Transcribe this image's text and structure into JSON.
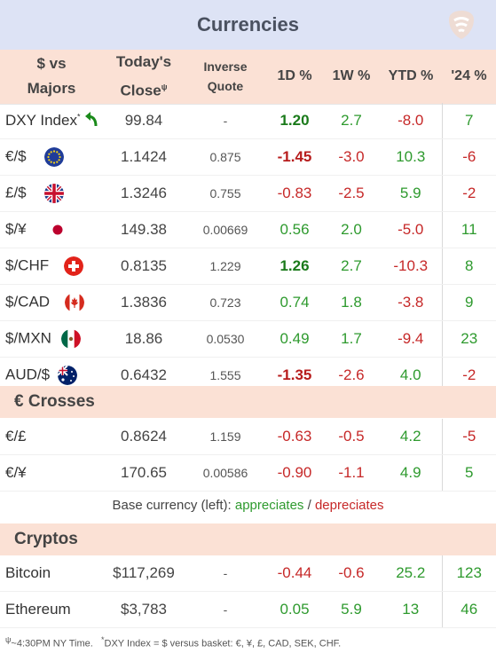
{
  "title": "Currencies",
  "headers": {
    "pair_line1": "$ vs",
    "pair_line2": "Majors",
    "close_line1": "Today's",
    "close_line2": "Close",
    "close_mark": "ψ",
    "inverse_line1": "Inverse",
    "inverse_line2": "Quote",
    "d1": "1D %",
    "w1": "1W %",
    "ytd": "YTD %",
    "y24": "'24 %"
  },
  "majors": [
    {
      "name": "DXY Index",
      "mark": "*",
      "icon": "green-arrow-icon",
      "close": "99.84",
      "inverse": "-",
      "d1": "1.20",
      "w1": "2.7",
      "ytd": "-8.0",
      "y24": "7"
    },
    {
      "name": "€/$",
      "icon": "eu-flag-icon",
      "close": "1.1424",
      "inverse": "0.875",
      "d1": "-1.45",
      "w1": "-3.0",
      "ytd": "10.3",
      "y24": "-6"
    },
    {
      "name": "£/$",
      "icon": "uk-flag-icon",
      "close": "1.3246",
      "inverse": "0.755",
      "d1": "-0.83",
      "w1": "-2.5",
      "ytd": "5.9",
      "y24": "-2"
    },
    {
      "name": "$/¥",
      "icon": "japan-flag-icon",
      "close": "149.38",
      "inverse": "0.00669",
      "d1": "0.56",
      "w1": "2.0",
      "ytd": "-5.0",
      "y24": "11"
    },
    {
      "name": "$/CHF",
      "icon": "swiss-flag-icon",
      "close": "0.8135",
      "inverse": "1.229",
      "d1": "1.26",
      "w1": "2.7",
      "ytd": "-10.3",
      "y24": "8"
    },
    {
      "name": "$/CAD",
      "icon": "canada-flag-icon",
      "close": "1.3836",
      "inverse": "0.723",
      "d1": "0.74",
      "w1": "1.8",
      "ytd": "-3.8",
      "y24": "9"
    },
    {
      "name": "$/MXN",
      "icon": "mexico-flag-icon",
      "close": "18.86",
      "inverse": "0.0530",
      "d1": "0.49",
      "w1": "1.7",
      "ytd": "-9.4",
      "y24": "23"
    },
    {
      "name": "AUD/$",
      "icon": "australia-flag-icon",
      "close": "0.6432",
      "inverse": "1.555",
      "d1": "-1.35",
      "w1": "-2.6",
      "ytd": "4.0",
      "y24": "-2"
    }
  ],
  "crosses_title": "€ Crosses",
  "crosses": [
    {
      "name": "€/£",
      "close": "0.8624",
      "inverse": "1.159",
      "d1": "-0.63",
      "w1": "-0.5",
      "ytd": "4.2",
      "y24": "-5"
    },
    {
      "name": "€/¥",
      "close": "170.65",
      "inverse": "0.00586",
      "d1": "-0.90",
      "w1": "-1.1",
      "ytd": "4.9",
      "y24": "5"
    }
  ],
  "legend": {
    "prefix": "Base currency (left):",
    "appreciates": "appreciates",
    "slash": "/",
    "depreciates": "depreciates"
  },
  "cryptos_title": "Cryptos",
  "cryptos": [
    {
      "name": "Bitcoin",
      "close": "$117,269",
      "inverse": "-",
      "d1": "-0.44",
      "w1": "-0.6",
      "ytd": "25.2",
      "y24": "123"
    },
    {
      "name": "Ethereum",
      "close": "$3,783",
      "inverse": "-",
      "d1": "0.05",
      "w1": "5.9",
      "ytd": "13",
      "y24": "46"
    }
  ],
  "footnote": {
    "mark1": "ψ",
    "text1": "~4:30PM NY Time.",
    "mark2": "*",
    "text2": "DXY Index = $ versus basket: €, ¥, £, CAD, SEK, CHF."
  },
  "colors": {
    "positive": "#2e9a2e",
    "negative": "#c62828",
    "header_bg": "#fbe1d5",
    "title_bg": "#dde3f5"
  }
}
